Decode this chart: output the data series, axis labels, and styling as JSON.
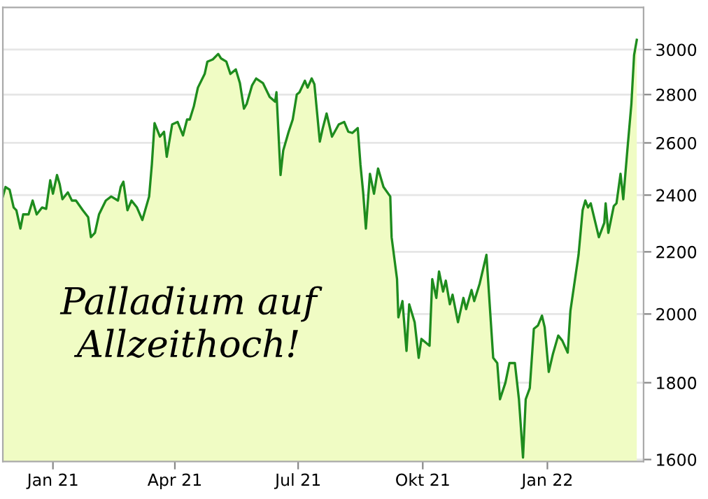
{
  "chart_data": {
    "type": "area",
    "x": [
      "2020-11-25",
      "2020-11-27",
      "2020-11-30",
      "2020-12-03",
      "2020-12-05",
      "2020-12-08",
      "2020-12-10",
      "2020-12-14",
      "2020-12-17",
      "2020-12-20",
      "2020-12-24",
      "2020-12-27",
      "2020-12-30",
      "2021-01-01",
      "2021-01-04",
      "2021-01-06",
      "2021-01-08",
      "2021-01-12",
      "2021-01-15",
      "2021-01-18",
      "2021-01-23",
      "2021-01-27",
      "2021-01-29",
      "2021-02-01",
      "2021-02-04",
      "2021-02-09",
      "2021-02-13",
      "2021-02-18",
      "2021-02-20",
      "2021-02-22",
      "2021-02-25",
      "2021-02-28",
      "2021-03-04",
      "2021-03-08",
      "2021-03-13",
      "2021-03-15",
      "2021-03-17",
      "2021-03-21",
      "2021-03-24",
      "2021-03-26",
      "2021-03-30",
      "2021-04-03",
      "2021-04-07",
      "2021-04-10",
      "2021-04-12",
      "2021-04-15",
      "2021-04-18",
      "2021-04-23",
      "2021-04-25",
      "2021-04-29",
      "2021-05-03",
      "2021-05-05",
      "2021-05-09",
      "2021-05-12",
      "2021-05-16",
      "2021-05-19",
      "2021-05-22",
      "2021-05-24",
      "2021-05-28",
      "2021-05-31",
      "2021-06-05",
      "2021-06-10",
      "2021-06-14",
      "2021-06-15",
      "2021-06-18",
      "2021-06-20",
      "2021-06-24",
      "2021-06-27",
      "2021-06-30",
      "2021-07-02",
      "2021-07-06",
      "2021-07-08",
      "2021-07-11",
      "2021-07-13",
      "2021-07-17",
      "2021-07-19",
      "2021-07-22",
      "2021-07-26",
      "2021-07-31",
      "2021-08-04",
      "2021-08-07",
      "2021-08-10",
      "2021-08-14",
      "2021-08-16",
      "2021-08-18",
      "2021-08-20",
      "2021-08-23",
      "2021-08-26",
      "2021-08-29",
      "2021-09-02",
      "2021-09-07",
      "2021-09-08",
      "2021-09-12",
      "2021-09-13",
      "2021-09-16",
      "2021-09-19",
      "2021-09-21",
      "2021-09-25",
      "2021-09-28",
      "2021-09-30",
      "2021-10-06",
      "2021-10-08",
      "2021-10-11",
      "2021-10-13",
      "2021-10-16",
      "2021-10-18",
      "2021-10-21",
      "2021-10-23",
      "2021-10-27",
      "2021-10-31",
      "2021-11-02",
      "2021-11-06",
      "2021-11-08",
      "2021-11-12",
      "2021-11-17",
      "2021-11-22",
      "2021-11-25",
      "2021-11-27",
      "2021-12-01",
      "2021-12-04",
      "2021-12-08",
      "2021-12-11",
      "2021-12-14",
      "2021-12-16",
      "2021-12-19",
      "2021-12-22",
      "2021-12-25",
      "2021-12-28",
      "2021-12-30",
      "2022-01-02",
      "2022-01-05",
      "2022-01-09",
      "2022-01-12",
      "2022-01-16",
      "2022-01-18",
      "2022-01-24",
      "2022-01-27",
      "2022-01-29",
      "2022-01-31",
      "2022-02-02",
      "2022-02-08",
      "2022-02-12",
      "2022-02-13",
      "2022-02-15",
      "2022-02-19",
      "2022-02-21",
      "2022-02-24",
      "2022-02-26",
      "2022-03-01",
      "2022-03-04",
      "2022-03-06",
      "2022-03-08"
    ],
    "series": [
      {
        "color": "#1e8c1e",
        "values": [
          2395,
          2430,
          2420,
          2355,
          2345,
          2280,
          2330,
          2330,
          2380,
          2330,
          2355,
          2350,
          2455,
          2405,
          2475,
          2440,
          2385,
          2410,
          2380,
          2380,
          2345,
          2320,
          2250,
          2265,
          2330,
          2380,
          2395,
          2380,
          2430,
          2450,
          2345,
          2380,
          2355,
          2310,
          2395,
          2515,
          2680,
          2625,
          2645,
          2545,
          2675,
          2685,
          2630,
          2695,
          2695,
          2750,
          2830,
          2890,
          2945,
          2955,
          2980,
          2960,
          2945,
          2890,
          2910,
          2850,
          2740,
          2760,
          2840,
          2870,
          2850,
          2790,
          2770,
          2810,
          2475,
          2570,
          2645,
          2695,
          2800,
          2810,
          2860,
          2830,
          2870,
          2845,
          2605,
          2655,
          2720,
          2625,
          2675,
          2685,
          2645,
          2640,
          2660,
          2515,
          2410,
          2280,
          2480,
          2405,
          2500,
          2430,
          2395,
          2250,
          2110,
          1990,
          2040,
          1890,
          2030,
          1975,
          1870,
          1925,
          1905,
          2110,
          2050,
          2135,
          2070,
          2105,
          2030,
          2060,
          1975,
          2050,
          2015,
          2075,
          2040,
          2095,
          2190,
          1870,
          1855,
          1755,
          1800,
          1855,
          1855,
          1755,
          1605,
          1755,
          1785,
          1955,
          1965,
          1995,
          1960,
          1830,
          1880,
          1935,
          1920,
          1885,
          2010,
          2190,
          2345,
          2380,
          2355,
          2370,
          2250,
          2300,
          2370,
          2265,
          2360,
          2370,
          2480,
          2385,
          2570,
          2760,
          2975,
          3045
        ]
      }
    ],
    "log": "y",
    "xlim": [
      "2020-11-25",
      "2022-03-13"
    ],
    "xticks": [
      {
        "value": "2021-01-01",
        "label": "Jan 21"
      },
      {
        "value": "2021-04-01",
        "label": "Apr 21"
      },
      {
        "value": "2021-07-01",
        "label": "Jul 21"
      },
      {
        "value": "2021-10-01",
        "label": "Okt 21"
      },
      {
        "value": "2022-01-01",
        "label": "Jan 22"
      }
    ],
    "ylim": [
      1595,
      3200
    ],
    "yticks": [
      1600,
      1800,
      2000,
      2200,
      2400,
      2600,
      2800,
      3000
    ],
    "grid": "y",
    "annotations": [
      "Palladium auf\nAllzeithoch!"
    ]
  }
}
